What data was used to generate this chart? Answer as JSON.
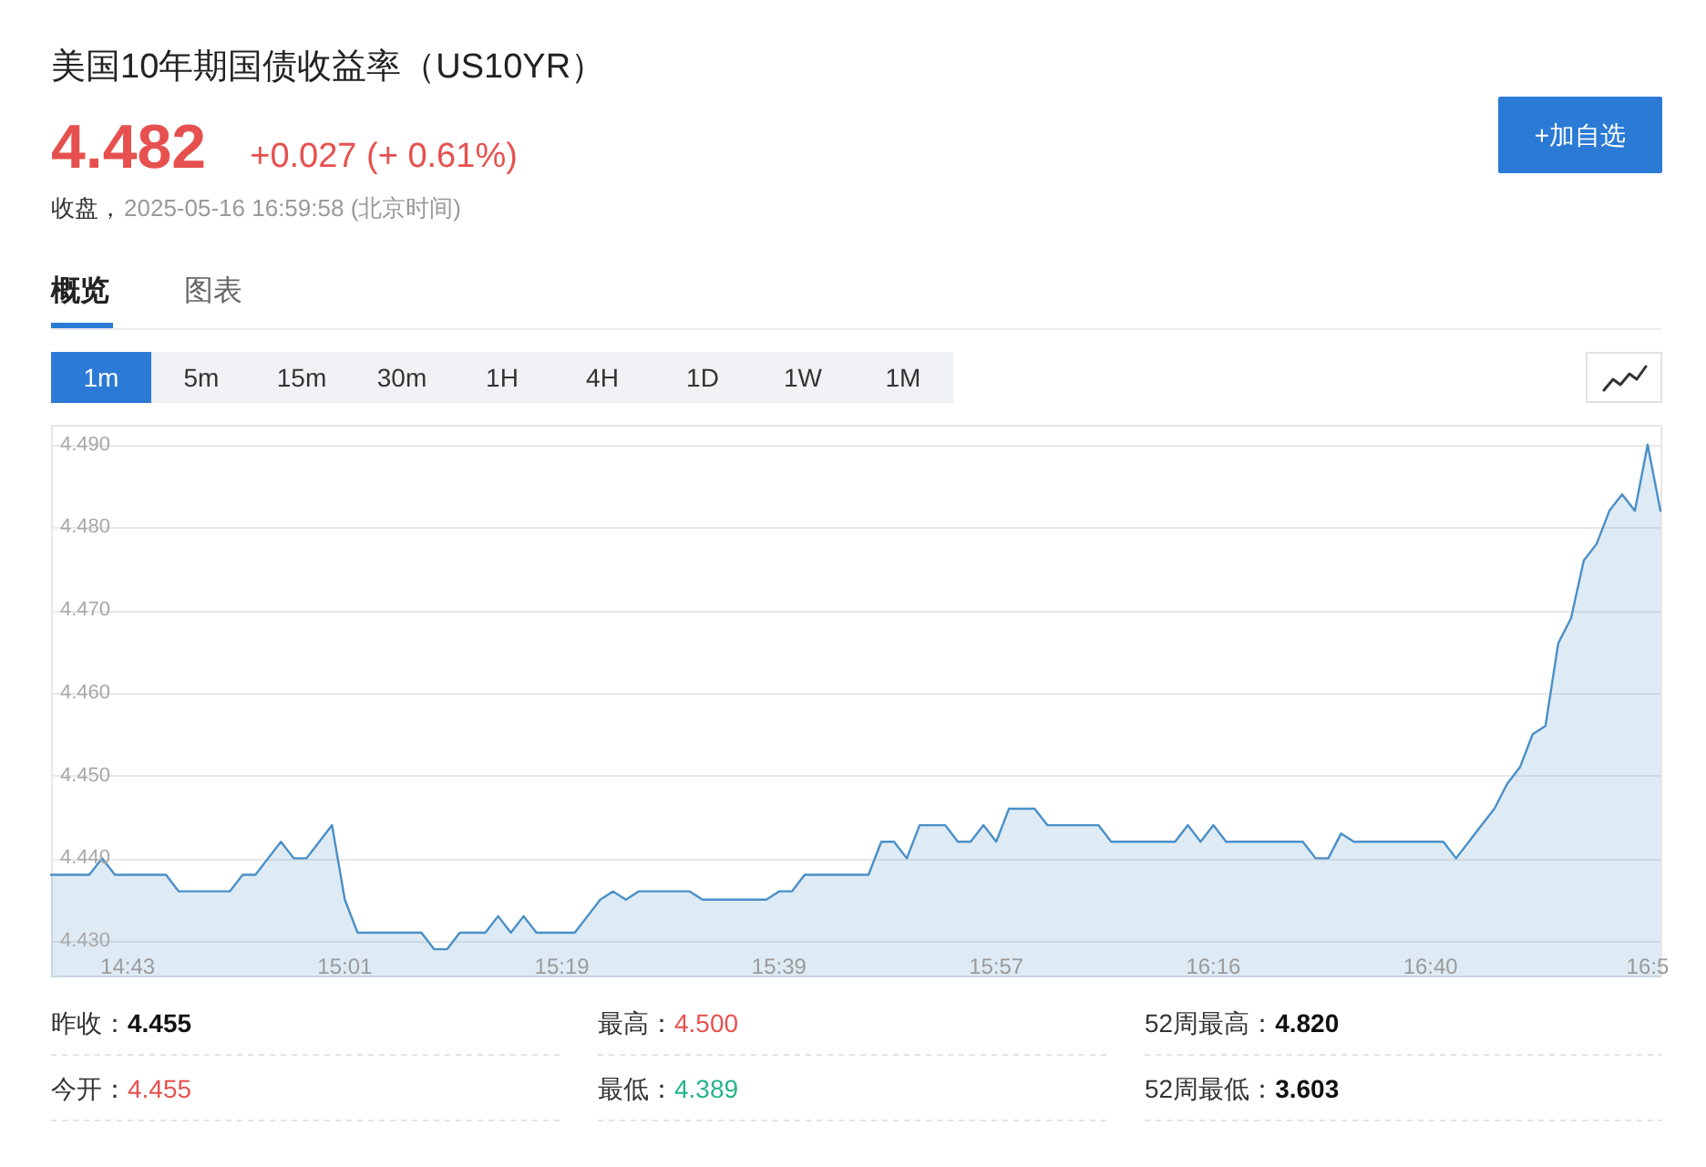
{
  "chart_data": {
    "type": "area",
    "title": "美国10年期国债收益率（US10YR）",
    "annotations": [
      "4.482",
      "+0.027 (+ 0.61%)",
      "收盘，",
      "2025-05-16 16:59:58 (北京时间)",
      "+加自选",
      "概览",
      "图表",
      "1m",
      "5m",
      "15m",
      "30m",
      "1H",
      "4H",
      "1D",
      "1W",
      "1M",
      "昨收：",
      "4.455",
      "最高：",
      "4.500",
      "52周最高：",
      "4.820",
      "今开：",
      "4.455",
      "最低：",
      "4.389",
      "52周最低：",
      "3.603"
    ],
    "categories": [
      null,
      null,
      null,
      null,
      null,
      null,
      "14:43",
      null,
      null,
      null,
      null,
      null,
      null,
      null,
      null,
      null,
      null,
      null,
      null,
      null,
      null,
      null,
      null,
      "15:01",
      null,
      null,
      null,
      null,
      null,
      null,
      null,
      null,
      null,
      null,
      null,
      null,
      null,
      null,
      null,
      null,
      "15:19",
      null,
      null,
      null,
      null,
      null,
      null,
      null,
      null,
      null,
      null,
      null,
      null,
      null,
      null,
      null,
      null,
      "15:39",
      null,
      null,
      null,
      null,
      null,
      null,
      null,
      null,
      null,
      null,
      null,
      null,
      null,
      null,
      null,
      null,
      "15:57",
      null,
      null,
      null,
      null,
      null,
      null,
      null,
      null,
      null,
      null,
      null,
      null,
      null,
      null,
      null,
      null,
      "16:16",
      null,
      null,
      null,
      null,
      null,
      null,
      null,
      null,
      null,
      null,
      null,
      null,
      null,
      null,
      null,
      null,
      "16:40",
      null,
      null,
      null,
      null,
      null,
      null,
      null,
      null,
      null,
      null,
      null,
      null,
      null,
      null,
      null,
      null,
      "16:5",
      null
    ],
    "values": [
      4.438,
      4.438,
      4.438,
      4.438,
      4.44,
      4.438,
      4.438,
      4.438,
      4.438,
      4.438,
      4.436,
      4.436,
      4.436,
      4.436,
      4.436,
      4.438,
      4.438,
      4.44,
      4.442,
      4.44,
      4.44,
      4.442,
      4.444,
      4.435,
      4.431,
      4.431,
      4.431,
      4.431,
      4.431,
      4.431,
      4.429,
      4.429,
      4.431,
      4.431,
      4.431,
      4.433,
      4.431,
      4.433,
      4.431,
      4.431,
      4.431,
      4.431,
      4.433,
      4.435,
      4.436,
      4.435,
      4.436,
      4.436,
      4.436,
      4.436,
      4.436,
      4.435,
      4.435,
      4.435,
      4.435,
      4.435,
      4.435,
      4.436,
      4.436,
      4.438,
      4.438,
      4.438,
      4.438,
      4.438,
      4.438,
      4.442,
      4.442,
      4.44,
      4.444,
      4.444,
      4.444,
      4.442,
      4.442,
      4.444,
      4.442,
      4.446,
      4.446,
      4.446,
      4.444,
      4.444,
      4.444,
      4.444,
      4.444,
      4.442,
      4.442,
      4.442,
      4.442,
      4.442,
      4.442,
      4.444,
      4.442,
      4.444,
      4.442,
      4.442,
      4.442,
      4.442,
      4.442,
      4.442,
      4.442,
      4.44,
      4.44,
      4.443,
      4.442,
      4.442,
      4.442,
      4.442,
      4.442,
      4.442,
      4.442,
      4.442,
      4.44,
      4.442,
      4.444,
      4.446,
      4.449,
      4.451,
      4.455,
      4.456,
      4.466,
      4.469,
      4.476,
      4.478,
      4.482,
      4.484,
      4.482,
      4.49,
      4.482
    ],
    "color": "#4a8fc7",
    "ylim": [
      4.4256,
      4.4924
    ],
    "yticks": [
      {
        "value": 4.43,
        "label": "4.430"
      },
      {
        "value": 4.44,
        "label": "4.440"
      },
      {
        "value": 4.45,
        "label": "4.450"
      },
      {
        "value": 4.46,
        "label": "4.460"
      },
      {
        "value": 4.47,
        "label": "4.470"
      },
      {
        "value": 4.48,
        "label": "4.480"
      },
      {
        "value": 4.49,
        "label": "4.490"
      }
    ],
    "grid": "y"
  }
}
